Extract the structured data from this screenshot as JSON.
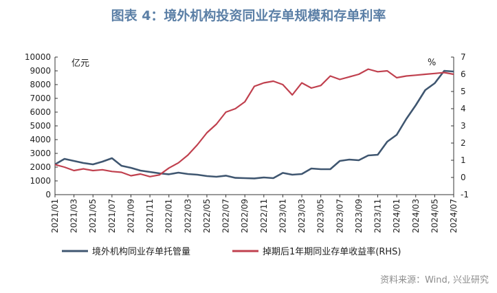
{
  "title": "图表 4：境外机构投资同业存单规模和存单利率",
  "source": "资料来源：Wind, 兴业研究",
  "colors": {
    "stock": "#3f5670",
    "yield": "#c0404e",
    "title": "#5b7fa6",
    "axis": "#333333"
  },
  "chart_data": {
    "type": "line",
    "left_unit": "亿元",
    "right_unit": "%",
    "left_ylim": [
      0,
      10000
    ],
    "left_ticks": [
      0,
      1000,
      2000,
      3000,
      4000,
      5000,
      6000,
      7000,
      8000,
      9000,
      10000
    ],
    "right_ylim": [
      -1,
      7
    ],
    "right_ticks": [
      -1,
      0,
      1,
      2,
      3,
      4,
      5,
      6,
      7
    ],
    "x_start": "2021-01",
    "x_end": "2024-07",
    "x_ticks": [
      "2021/01",
      "2021/03",
      "2021/05",
      "2021/07",
      "2021/09",
      "2021/11",
      "2022/01",
      "2022/03",
      "2022/05",
      "2022/07",
      "2022/09",
      "2022/11",
      "2023/01",
      "2023/03",
      "2023/05",
      "2023/07",
      "2023/09",
      "2023/11",
      "2024/01",
      "2024/03",
      "2024/05",
      "2024/07"
    ],
    "grid": false,
    "legend_position": "bottom",
    "series": [
      {
        "name": "境外机构同业存单托管量",
        "axis": "left",
        "points": [
          [
            "2021-01",
            2200
          ],
          [
            "2021-02",
            2600
          ],
          [
            "2021-03",
            2450
          ],
          [
            "2021-04",
            2300
          ],
          [
            "2021-05",
            2200
          ],
          [
            "2021-06",
            2400
          ],
          [
            "2021-07",
            2650
          ],
          [
            "2021-08",
            2100
          ],
          [
            "2021-09",
            1950
          ],
          [
            "2021-10",
            1750
          ],
          [
            "2021-11",
            1650
          ],
          [
            "2021-12",
            1550
          ],
          [
            "2022-01",
            1480
          ],
          [
            "2022-02",
            1600
          ],
          [
            "2022-03",
            1500
          ],
          [
            "2022-04",
            1450
          ],
          [
            "2022-05",
            1350
          ],
          [
            "2022-06",
            1300
          ],
          [
            "2022-07",
            1380
          ],
          [
            "2022-08",
            1220
          ],
          [
            "2022-09",
            1200
          ],
          [
            "2022-10",
            1180
          ],
          [
            "2022-11",
            1250
          ],
          [
            "2022-12",
            1200
          ],
          [
            "2023-01",
            1580
          ],
          [
            "2023-02",
            1450
          ],
          [
            "2023-03",
            1500
          ],
          [
            "2023-04",
            1900
          ],
          [
            "2023-05",
            1850
          ],
          [
            "2023-06",
            1850
          ],
          [
            "2023-07",
            2450
          ],
          [
            "2023-08",
            2550
          ],
          [
            "2023-09",
            2500
          ],
          [
            "2023-10",
            2850
          ],
          [
            "2023-11",
            2900
          ],
          [
            "2023-12",
            3850
          ],
          [
            "2024-01",
            4350
          ],
          [
            "2024-02",
            5500
          ],
          [
            "2024-03",
            6500
          ],
          [
            "2024-04",
            7600
          ],
          [
            "2024-05",
            8100
          ],
          [
            "2024-06",
            9000
          ],
          [
            "2024-07",
            8950
          ]
        ]
      },
      {
        "name": "掉期后1年期同业存单收益率(RHS)",
        "axis": "right",
        "points": [
          [
            "2021-01",
            0.75
          ],
          [
            "2021-02",
            0.6
          ],
          [
            "2021-03",
            0.4
          ],
          [
            "2021-04",
            0.5
          ],
          [
            "2021-05",
            0.4
          ],
          [
            "2021-06",
            0.45
          ],
          [
            "2021-07",
            0.35
          ],
          [
            "2021-08",
            0.3
          ],
          [
            "2021-09",
            0.1
          ],
          [
            "2021-10",
            0.2
          ],
          [
            "2021-11",
            0.05
          ],
          [
            "2021-12",
            0.15
          ],
          [
            "2022-01",
            0.55
          ],
          [
            "2022-02",
            0.85
          ],
          [
            "2022-03",
            1.3
          ],
          [
            "2022-04",
            1.9
          ],
          [
            "2022-05",
            2.6
          ],
          [
            "2022-06",
            3.1
          ],
          [
            "2022-07",
            3.8
          ],
          [
            "2022-08",
            4.0
          ],
          [
            "2022-09",
            4.4
          ],
          [
            "2022-10",
            5.3
          ],
          [
            "2022-11",
            5.5
          ],
          [
            "2022-12",
            5.6
          ],
          [
            "2023-01",
            5.4
          ],
          [
            "2023-02",
            4.8
          ],
          [
            "2023-03",
            5.5
          ],
          [
            "2023-04",
            5.2
          ],
          [
            "2023-05",
            5.35
          ],
          [
            "2023-06",
            5.9
          ],
          [
            "2023-07",
            5.7
          ],
          [
            "2023-08",
            5.85
          ],
          [
            "2023-09",
            6.0
          ],
          [
            "2023-10",
            6.3
          ],
          [
            "2023-11",
            6.15
          ],
          [
            "2023-12",
            6.2
          ],
          [
            "2024-01",
            5.8
          ],
          [
            "2024-02",
            5.9
          ],
          [
            "2024-03",
            5.95
          ],
          [
            "2024-04",
            6.0
          ],
          [
            "2024-05",
            6.05
          ],
          [
            "2024-06",
            6.1
          ],
          [
            "2024-07",
            6.0
          ]
        ]
      }
    ]
  }
}
